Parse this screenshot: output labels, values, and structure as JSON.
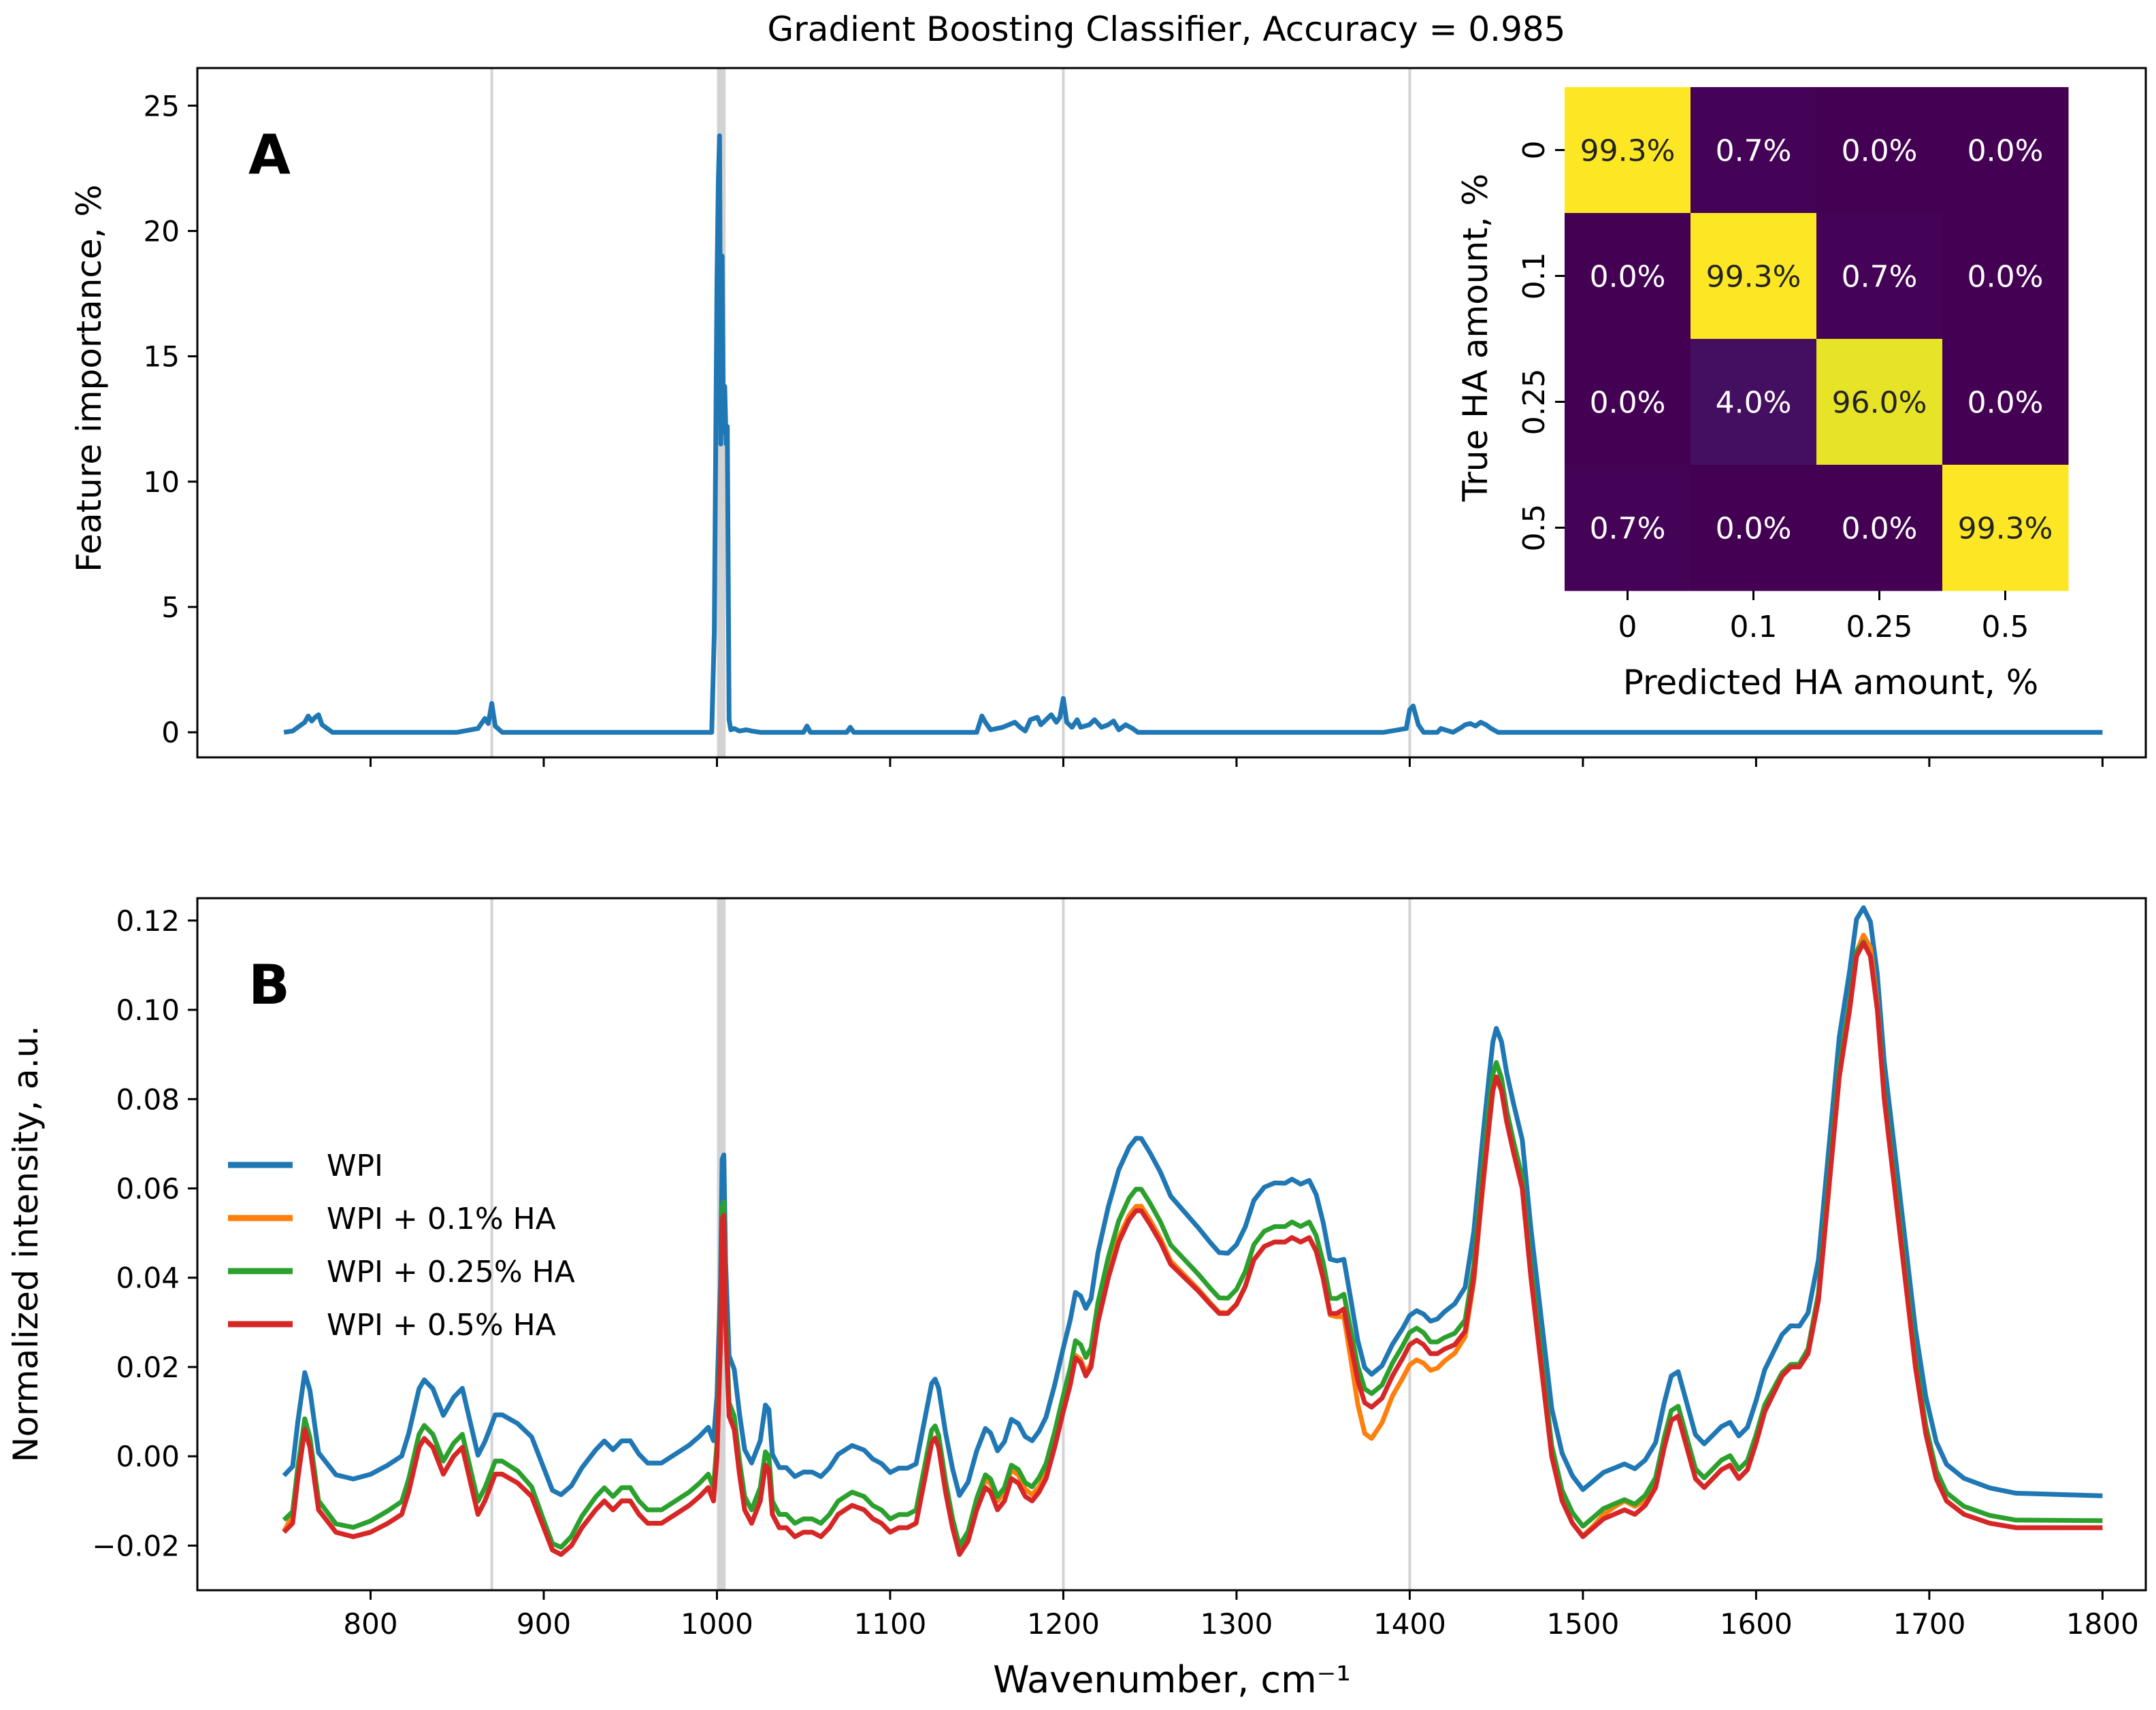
{
  "figure": {
    "title": "Gradient Boosting Classifier, Accuracy = 0.985",
    "xlabel": "Wavenumber, cm⁻¹"
  },
  "chart_data": [
    {
      "panel": "A",
      "type": "line",
      "ylabel": "Feature importance, %",
      "xlim": [
        700,
        1825
      ],
      "ylim": [
        -1,
        26.5
      ],
      "x_ticks": [
        800,
        900,
        1000,
        1100,
        1200,
        1300,
        1400,
        1500,
        1600,
        1700,
        1800
      ],
      "y_ticks": [
        0,
        5,
        10,
        15,
        20,
        25
      ],
      "y_tick_labels": [
        "0",
        "5",
        "10",
        "15",
        "20",
        "25"
      ],
      "grid": false,
      "reference_lines": [
        870,
        1200,
        1400
      ],
      "highlight_band": [
        1000,
        1005
      ],
      "series": [
        {
          "name": "Feature importance",
          "color": "#1f77b4",
          "x": [
            750,
            755,
            762,
            764,
            766,
            768,
            770,
            772,
            778,
            850,
            862,
            866,
            868,
            870,
            872,
            876,
            997,
            998.5,
            1000,
            1000.8,
            1001.5,
            1002.2,
            1003,
            1003.8,
            1004.5,
            1005.3,
            1006,
            1007,
            1008,
            1010,
            1013,
            1017,
            1020,
            1025,
            1050,
            1052,
            1054,
            1075,
            1077,
            1079,
            1150,
            1153,
            1155,
            1158,
            1165,
            1172,
            1175,
            1178,
            1181,
            1185,
            1187,
            1190,
            1193,
            1196,
            1198,
            1200,
            1202,
            1205,
            1208,
            1210,
            1215,
            1218,
            1222,
            1226,
            1229,
            1232,
            1236,
            1240,
            1243,
            1385,
            1398,
            1400,
            1402,
            1405,
            1408,
            1416,
            1418,
            1425,
            1430,
            1432,
            1435,
            1438,
            1441,
            1444,
            1447,
            1451,
            1800
          ],
          "y": [
            0,
            0.05,
            0.4,
            0.65,
            0.45,
            0.6,
            0.7,
            0.3,
            0,
            0,
            0.15,
            0.55,
            0.35,
            1.15,
            0.25,
            0,
            0,
            4,
            18,
            22,
            23.8,
            11.5,
            19,
            12,
            13.8,
            11.5,
            12.2,
            0.5,
            0.1,
            0.15,
            0.05,
            0.1,
            0.05,
            0,
            0,
            0.25,
            0,
            0,
            0.2,
            0,
            0,
            0.65,
            0.4,
            0.1,
            0.2,
            0.4,
            0.2,
            0.05,
            0.5,
            0.6,
            0.3,
            0.5,
            0.7,
            0.4,
            0.6,
            1.35,
            0.4,
            0.2,
            0.5,
            0.2,
            0.3,
            0.5,
            0.2,
            0.3,
            0.45,
            0.1,
            0.3,
            0.15,
            0,
            0,
            0.15,
            0.9,
            1.05,
            0.3,
            0,
            0,
            0.15,
            0,
            0.2,
            0.3,
            0.35,
            0.25,
            0.4,
            0.3,
            0.15,
            0,
            0
          ]
        }
      ]
    },
    {
      "panel": "A-inset",
      "type": "heatmap",
      "xlabel": "Predicted HA amount, %",
      "ylabel": "True HA amount, %",
      "categories": [
        "0",
        "0.1",
        "0.25",
        "0.5"
      ],
      "values": [
        [
          99.3,
          0.7,
          0.0,
          0.0
        ],
        [
          0.0,
          99.3,
          0.7,
          0.0
        ],
        [
          0.0,
          4.0,
          96.0,
          0.0
        ],
        [
          0.7,
          0.0,
          0.0,
          99.3
        ]
      ],
      "cell_labels": [
        [
          "99.3%",
          "0.7%",
          "0.0%",
          "0.0%"
        ],
        [
          "0.0%",
          "99.3%",
          "0.7%",
          "0.0%"
        ],
        [
          "0.0%",
          "4.0%",
          "96.0%",
          "0.0%"
        ],
        [
          "0.7%",
          "0.0%",
          "0.0%",
          "99.3%"
        ]
      ],
      "colormap": "viridis"
    },
    {
      "panel": "B",
      "type": "line",
      "ylabel": "Normalized intensity, a.u.",
      "xlim": [
        700,
        1825
      ],
      "ylim": [
        -0.03,
        0.125
      ],
      "x_ticks": [
        800,
        900,
        1000,
        1100,
        1200,
        1300,
        1400,
        1500,
        1600,
        1700,
        1800
      ],
      "x_tick_labels": [
        "800",
        "900",
        "1000",
        "1100",
        "1200",
        "1300",
        "1400",
        "1500",
        "1600",
        "1700",
        "1800"
      ],
      "y_ticks": [
        -0.02,
        0.0,
        0.02,
        0.04,
        0.06,
        0.08,
        0.1,
        0.12
      ],
      "y_tick_labels": [
        "−0.02",
        "0.00",
        "0.02",
        "0.04",
        "0.06",
        "0.08",
        "0.10",
        "0.12"
      ],
      "grid": false,
      "legend_position": "center-left",
      "reference_lines": [
        870,
        1200,
        1400
      ],
      "highlight_band": [
        1000,
        1005
      ],
      "x": [
        750,
        755,
        758,
        762,
        765,
        770,
        780,
        790,
        800,
        810,
        818,
        822,
        828,
        831,
        836,
        842,
        848,
        853,
        856,
        862,
        866,
        872,
        876,
        885,
        893,
        900,
        905,
        910,
        916,
        922,
        930,
        935,
        940,
        945,
        950,
        955,
        960,
        968,
        976,
        984,
        990,
        995,
        998,
        1000,
        1002,
        1003,
        1004,
        1005,
        1007,
        1010,
        1013,
        1016,
        1020,
        1025,
        1028,
        1030,
        1032,
        1036,
        1040,
        1045,
        1050,
        1055,
        1060,
        1065,
        1070,
        1078,
        1085,
        1090,
        1095,
        1100,
        1105,
        1110,
        1115,
        1120,
        1124,
        1126,
        1128,
        1132,
        1136,
        1140,
        1145,
        1150,
        1155,
        1158,
        1162,
        1166,
        1170,
        1174,
        1178,
        1182,
        1186,
        1190,
        1195,
        1200,
        1204,
        1207,
        1210,
        1213,
        1216,
        1220,
        1226,
        1232,
        1238,
        1242,
        1245,
        1250,
        1256,
        1262,
        1270,
        1278,
        1285,
        1290,
        1295,
        1300,
        1305,
        1310,
        1316,
        1322,
        1328,
        1332,
        1337,
        1342,
        1346,
        1350,
        1354,
        1358,
        1362,
        1366,
        1370,
        1374,
        1378,
        1384,
        1390,
        1396,
        1400,
        1404,
        1408,
        1412,
        1416,
        1420,
        1426,
        1432,
        1437,
        1442,
        1446,
        1448,
        1450,
        1453,
        1456,
        1460,
        1465,
        1470,
        1476,
        1482,
        1488,
        1494,
        1500,
        1506,
        1512,
        1518,
        1524,
        1530,
        1536,
        1542,
        1547,
        1551,
        1555,
        1560,
        1565,
        1570,
        1575,
        1580,
        1585,
        1590,
        1595,
        1600,
        1605,
        1610,
        1615,
        1620,
        1625,
        1630,
        1636,
        1642,
        1648,
        1654,
        1658,
        1662,
        1666,
        1670,
        1674,
        1680,
        1686,
        1692,
        1698,
        1704,
        1710,
        1720,
        1735,
        1750,
        1765,
        1780,
        1800
      ],
      "series": [
        {
          "name": "WPI",
          "color": "#1f77b4",
          "offsets": [
            [
              990,
              1012,
              0.0045
            ],
            [
              1005,
              1001,
              0.009
            ],
            [
              1240,
              40,
              0.0035
            ],
            [
              1325,
              40,
              0.001
            ],
            [
              1400,
              28,
              -0.005
            ],
            [
              1375,
              10,
              -0.002
            ],
            [
              1665,
              8,
              -0.001
            ]
          ]
        },
        {
          "name": "WPI + 0.1% HA",
          "color": "#ff7f0e",
          "offsets": [
            [
              1240,
              40,
              0.001
            ],
            [
              1400,
              28,
              -0.0045
            ],
            [
              1375,
              10,
              -0.005
            ],
            [
              1165,
              25,
              0.002
            ],
            [
              1525,
              15,
              0.002
            ],
            [
              1665,
              8,
              0.002
            ],
            [
              758,
              5,
              0.0025
            ]
          ]
        },
        {
          "name": "WPI + 0.25% HA",
          "color": "#2ca02c",
          "offsets": [
            [
              1240,
              40,
              0.002
            ],
            [
              1000,
              1001,
              0.002
            ],
            [
              1005,
              1001,
              0.001
            ],
            [
              1445,
              6,
              0.0015
            ],
            [
              1665,
              8,
              -0.002
            ],
            [
              1620,
              15,
              -0.0015
            ],
            [
              905,
              15,
              -0.0015
            ],
            [
              780,
              20,
              -0.001
            ],
            [
              1140,
              10,
              -0.001
            ],
            [
              1340,
              50,
              0.0008
            ]
          ]
        },
        {
          "name": "WPI + 0.5% HA",
          "color": "#d62728",
          "offsets": []
        }
      ],
      "base_y": [
        -0.017,
        -0.015,
        -0.005,
        0.006,
        0.002,
        -0.012,
        -0.017,
        -0.018,
        -0.017,
        -0.015,
        -0.013,
        -0.008,
        0.002,
        0.004,
        0.002,
        -0.004,
        0.0,
        0.002,
        -0.003,
        -0.013,
        -0.01,
        -0.004,
        -0.004,
        -0.006,
        -0.009,
        -0.016,
        -0.021,
        -0.022,
        -0.02,
        -0.016,
        -0.012,
        -0.01,
        -0.012,
        -0.01,
        -0.01,
        -0.013,
        -0.015,
        -0.015,
        -0.013,
        -0.011,
        -0.009,
        -0.007,
        -0.01,
        0.0,
        0.025,
        0.053,
        0.054,
        0.03,
        0.009,
        0.006,
        -0.004,
        -0.012,
        -0.015,
        -0.01,
        -0.002,
        -0.003,
        -0.013,
        -0.016,
        -0.016,
        -0.018,
        -0.017,
        -0.017,
        -0.018,
        -0.016,
        -0.013,
        -0.011,
        -0.012,
        -0.014,
        -0.015,
        -0.017,
        -0.016,
        -0.016,
        -0.015,
        -0.005,
        0.003,
        0.004,
        0.002,
        -0.008,
        -0.016,
        -0.022,
        -0.019,
        -0.012,
        -0.007,
        -0.008,
        -0.012,
        -0.01,
        -0.005,
        -0.006,
        -0.009,
        -0.01,
        -0.008,
        -0.005,
        0.002,
        0.01,
        0.016,
        0.022,
        0.021,
        0.018,
        0.02,
        0.03,
        0.04,
        0.048,
        0.053,
        0.055,
        0.055,
        0.052,
        0.048,
        0.043,
        0.04,
        0.037,
        0.034,
        0.032,
        0.032,
        0.034,
        0.038,
        0.044,
        0.047,
        0.048,
        0.048,
        0.049,
        0.048,
        0.049,
        0.046,
        0.04,
        0.032,
        0.032,
        0.033,
        0.025,
        0.017,
        0.012,
        0.011,
        0.013,
        0.018,
        0.022,
        0.025,
        0.026,
        0.025,
        0.023,
        0.023,
        0.024,
        0.025,
        0.028,
        0.04,
        0.06,
        0.075,
        0.082,
        0.085,
        0.082,
        0.075,
        0.068,
        0.06,
        0.04,
        0.02,
        0.0,
        -0.01,
        -0.015,
        -0.018,
        -0.016,
        -0.014,
        -0.013,
        -0.012,
        -0.013,
        -0.011,
        -0.007,
        0.002,
        0.008,
        0.009,
        0.002,
        -0.005,
        -0.007,
        -0.005,
        -0.003,
        -0.002,
        -0.005,
        -0.003,
        0.003,
        0.01,
        0.014,
        0.018,
        0.02,
        0.02,
        0.023,
        0.035,
        0.06,
        0.085,
        0.1,
        0.112,
        0.115,
        0.112,
        0.1,
        0.08,
        0.06,
        0.04,
        0.02,
        0.005,
        -0.005,
        -0.01,
        -0.013,
        -0.015,
        -0.016,
        -0.016,
        -0.016,
        -0.016
      ]
    }
  ]
}
